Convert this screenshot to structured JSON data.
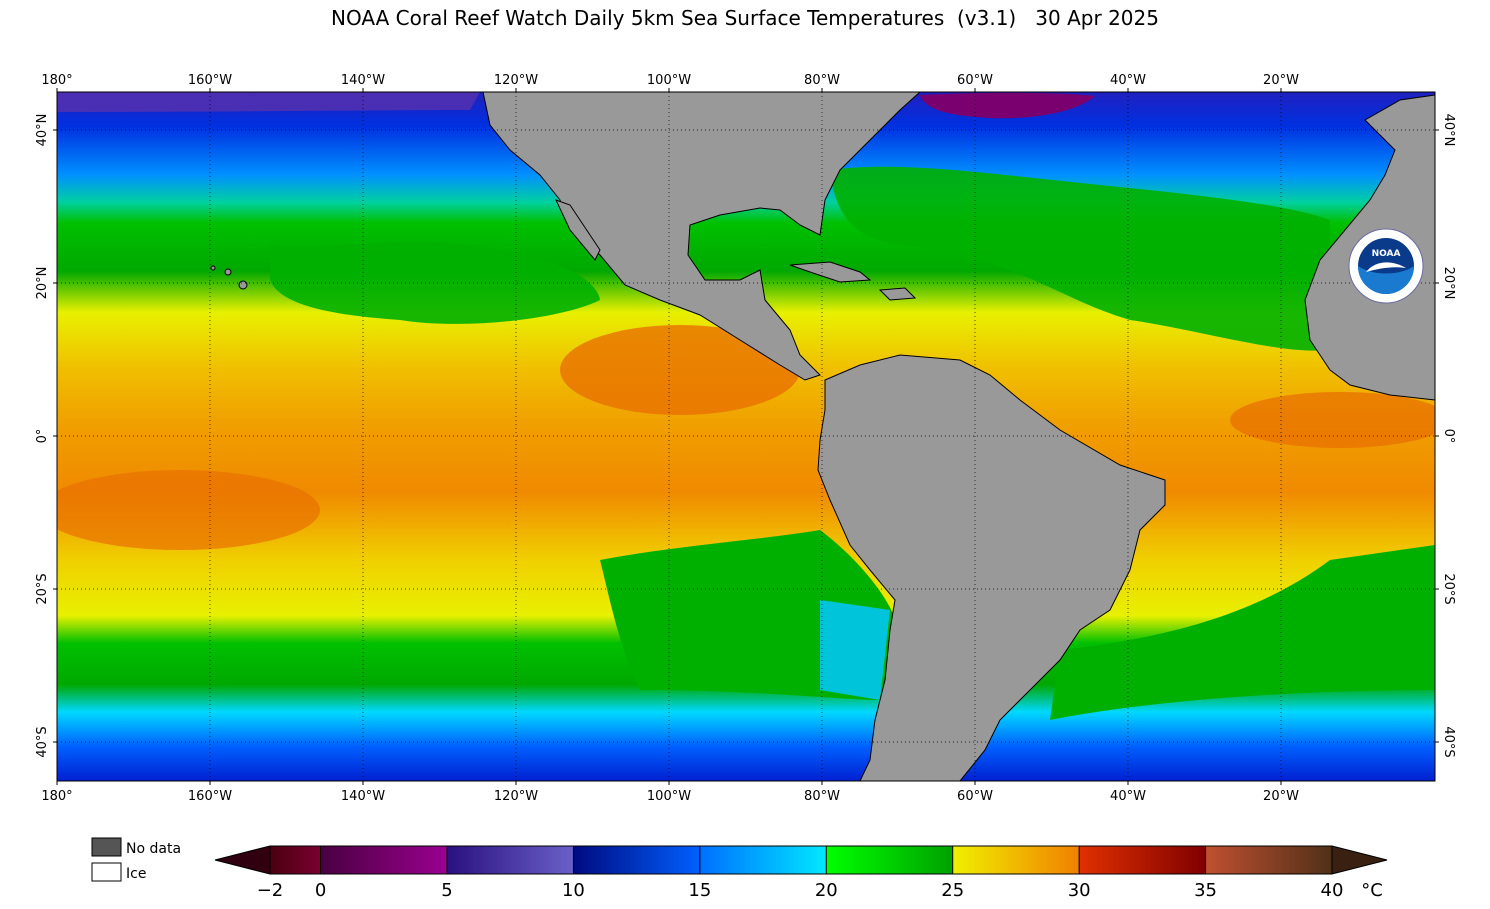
{
  "title": "NOAA Coral Reef Watch Daily 5km Sea Surface Temperatures  (v3.1)   30 Apr 2025",
  "map": {
    "lon_labels": [
      "180°",
      "160°W",
      "140°W",
      "120°W",
      "100°W",
      "80°W",
      "60°W",
      "40°W",
      "20°W"
    ],
    "lat_labels_left": [
      "40°N",
      "20°N",
      "0°",
      "20°S",
      "40°S"
    ],
    "lat_labels_right": [
      "40°N",
      "20°N",
      "0°",
      "20°S",
      "40°S"
    ],
    "land_color": "#999999",
    "gridlines": "dotted"
  },
  "logo": {
    "text": "NOAA"
  },
  "legend": {
    "nodata_label": "No data",
    "ice_label": "Ice",
    "nodata_color": "#555555",
    "ice_color": "#ffffff"
  },
  "colorbar": {
    "ticks": [
      "−2",
      "0",
      "5",
      "10",
      "15",
      "20",
      "25",
      "30",
      "35",
      "40"
    ],
    "unit": "°C",
    "stops": [
      {
        "v": -2,
        "c": "#4a0010"
      },
      {
        "v": 0,
        "c": "#7a0030"
      },
      {
        "v": 0.01,
        "c": "#4a0040"
      },
      {
        "v": 5,
        "c": "#9a0090"
      },
      {
        "v": 5.01,
        "c": "#2a1080"
      },
      {
        "v": 10,
        "c": "#6a60c8"
      },
      {
        "v": 10.01,
        "c": "#000a80"
      },
      {
        "v": 15,
        "c": "#0060ff"
      },
      {
        "v": 15.01,
        "c": "#0070ff"
      },
      {
        "v": 20,
        "c": "#00e8ff"
      },
      {
        "v": 20.01,
        "c": "#00ff00"
      },
      {
        "v": 25,
        "c": "#00a000"
      },
      {
        "v": 25.01,
        "c": "#f0f000"
      },
      {
        "v": 30,
        "c": "#f08000"
      },
      {
        "v": 30.01,
        "c": "#e03000"
      },
      {
        "v": 35,
        "c": "#800000"
      },
      {
        "v": 35.01,
        "c": "#c05030"
      },
      {
        "v": 40,
        "c": "#503018"
      }
    ]
  }
}
